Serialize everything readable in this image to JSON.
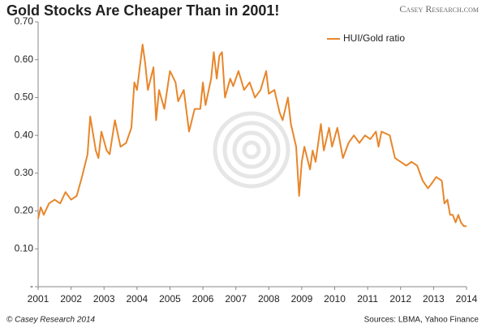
{
  "chart_data": {
    "type": "line",
    "title": "Gold Stocks Are Cheaper Than in 2001!",
    "brand": "Casey Research.com",
    "footer_left": "© Casey Research 2014",
    "footer_right": "Sources: LBMA, Yahoo Finance",
    "x": [
      2001.0,
      2001.08,
      2001.17,
      2001.33,
      2001.5,
      2001.67,
      2001.83,
      2002.0,
      2002.17,
      2002.33,
      2002.5,
      2002.58,
      2002.75,
      2002.83,
      2002.92,
      2003.08,
      2003.17,
      2003.33,
      2003.5,
      2003.67,
      2003.83,
      2003.92,
      2004.0,
      2004.17,
      2004.25,
      2004.33,
      2004.5,
      2004.58,
      2004.67,
      2004.83,
      2005.0,
      2005.17,
      2005.25,
      2005.42,
      2005.58,
      2005.75,
      2005.92,
      2006.0,
      2006.08,
      2006.25,
      2006.33,
      2006.42,
      2006.5,
      2006.58,
      2006.67,
      2006.83,
      2006.92,
      2007.08,
      2007.25,
      2007.42,
      2007.58,
      2007.75,
      2007.92,
      2008.0,
      2008.17,
      2008.33,
      2008.42,
      2008.58,
      2008.67,
      2008.83,
      2008.92,
      2009.0,
      2009.08,
      2009.25,
      2009.33,
      2009.42,
      2009.58,
      2009.67,
      2009.83,
      2009.92,
      2010.08,
      2010.25,
      2010.42,
      2010.58,
      2010.75,
      2010.92,
      2011.08,
      2011.25,
      2011.33,
      2011.42,
      2011.67,
      2011.83,
      2012.0,
      2012.17,
      2012.33,
      2012.5,
      2012.67,
      2012.83,
      2012.92,
      2013.08,
      2013.25,
      2013.33,
      2013.42,
      2013.5,
      2013.58,
      2013.67,
      2013.75,
      2013.83,
      2013.92,
      2014.0
    ],
    "series": [
      {
        "name": "HUI/Gold ratio",
        "color": "#e8862b",
        "values": [
          0.18,
          0.21,
          0.19,
          0.22,
          0.23,
          0.22,
          0.25,
          0.23,
          0.24,
          0.29,
          0.35,
          0.45,
          0.36,
          0.34,
          0.41,
          0.36,
          0.35,
          0.44,
          0.37,
          0.38,
          0.42,
          0.54,
          0.52,
          0.64,
          0.59,
          0.52,
          0.58,
          0.44,
          0.52,
          0.47,
          0.57,
          0.54,
          0.49,
          0.52,
          0.41,
          0.47,
          0.47,
          0.54,
          0.48,
          0.55,
          0.62,
          0.55,
          0.61,
          0.62,
          0.5,
          0.55,
          0.53,
          0.57,
          0.52,
          0.54,
          0.5,
          0.52,
          0.57,
          0.51,
          0.52,
          0.46,
          0.44,
          0.5,
          0.43,
          0.37,
          0.24,
          0.33,
          0.37,
          0.31,
          0.36,
          0.33,
          0.43,
          0.36,
          0.42,
          0.37,
          0.42,
          0.34,
          0.38,
          0.4,
          0.38,
          0.4,
          0.39,
          0.41,
          0.37,
          0.41,
          0.4,
          0.34,
          0.33,
          0.32,
          0.33,
          0.32,
          0.28,
          0.26,
          0.27,
          0.29,
          0.28,
          0.22,
          0.23,
          0.19,
          0.19,
          0.17,
          0.19,
          0.17,
          0.16,
          0.16
        ]
      }
    ],
    "xlim": [
      2001,
      2014
    ],
    "xticks": [
      2001,
      2002,
      2003,
      2004,
      2005,
      2006,
      2007,
      2008,
      2009,
      2010,
      2011,
      2012,
      2013,
      2014
    ],
    "ylim": [
      0,
      0.7
    ],
    "yticks": [
      {
        "value": 0,
        "label": "-"
      },
      {
        "value": 0.1,
        "label": "0.10"
      },
      {
        "value": 0.2,
        "label": "0.20"
      },
      {
        "value": 0.3,
        "label": "0.30"
      },
      {
        "value": 0.4,
        "label": "0.40"
      },
      {
        "value": 0.5,
        "label": "0.50"
      },
      {
        "value": 0.6,
        "label": "0.60"
      },
      {
        "value": 0.7,
        "label": "0.70"
      }
    ],
    "legend": "top-right"
  }
}
